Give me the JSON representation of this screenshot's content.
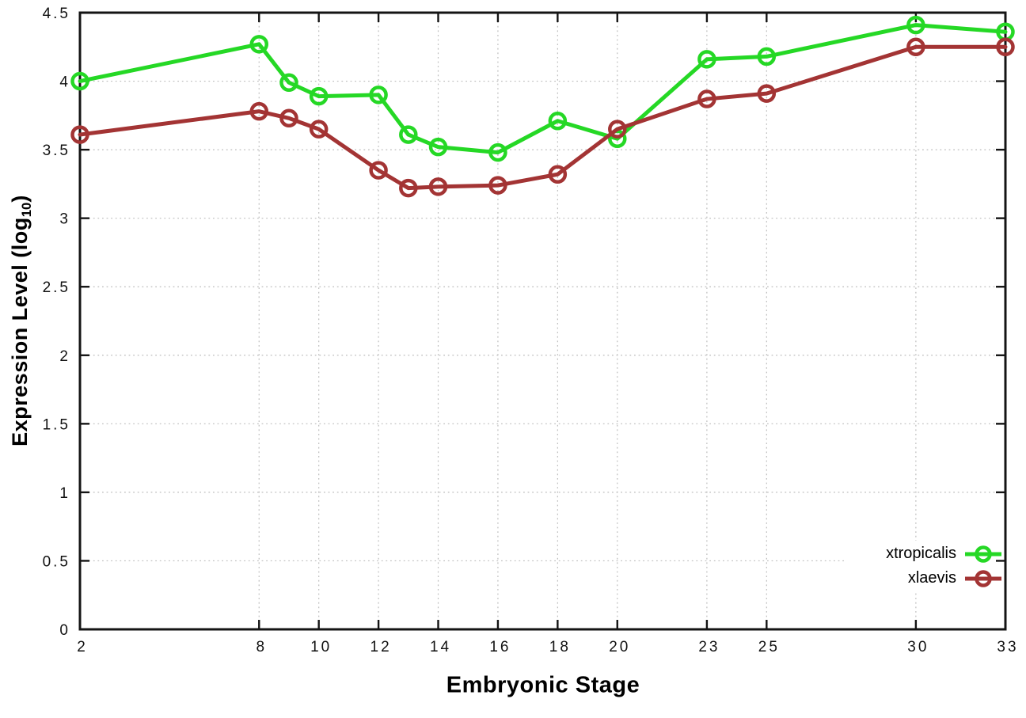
{
  "chart_data": {
    "type": "line",
    "title": "",
    "xlabel": "Embryonic Stage",
    "ylabel": {
      "prefix": "Expression Level (log",
      "sub": "10",
      "suffix": ")"
    },
    "xlim": [
      2,
      33
    ],
    "ylim": [
      0,
      4.5
    ],
    "grid": true,
    "legend_position": "bottom-right",
    "x_ticks": [
      2,
      8,
      10,
      12,
      14,
      16,
      18,
      20,
      23,
      25,
      30,
      33
    ],
    "x_tick_labels": [
      "2",
      "8",
      "10",
      "12",
      "14",
      "16",
      "18",
      "20",
      "23",
      "25",
      "30",
      "33"
    ],
    "y_ticks": [
      0,
      0.5,
      1,
      1.5,
      2,
      2.5,
      3,
      3.5,
      4,
      4.5
    ],
    "y_tick_labels": [
      "0",
      "0.5",
      "1",
      "1.5",
      "2",
      "2.5",
      "3",
      "3.5",
      "4",
      "4.5"
    ],
    "x": [
      2,
      8,
      9,
      10,
      12,
      13,
      14,
      16,
      18,
      20,
      23,
      25,
      30,
      33
    ],
    "series": [
      {
        "name": "xtropicalis",
        "color": "#25d825",
        "values": [
          4.0,
          4.27,
          3.99,
          3.89,
          3.9,
          3.61,
          3.52,
          3.48,
          3.71,
          3.58,
          4.16,
          4.18,
          4.41,
          4.36
        ]
      },
      {
        "name": "xlaevis",
        "color": "#a33434",
        "values": [
          3.61,
          3.78,
          3.73,
          3.65,
          3.35,
          3.22,
          3.23,
          3.24,
          3.32,
          3.65,
          3.87,
          3.91,
          4.25,
          4.25
        ]
      }
    ],
    "style": {
      "grid_color": "#bcbcbc",
      "border_color": "#141414",
      "tick_label_color": "#111111",
      "background": "#ffffff",
      "line_width": 5,
      "marker": "open-circle"
    }
  }
}
